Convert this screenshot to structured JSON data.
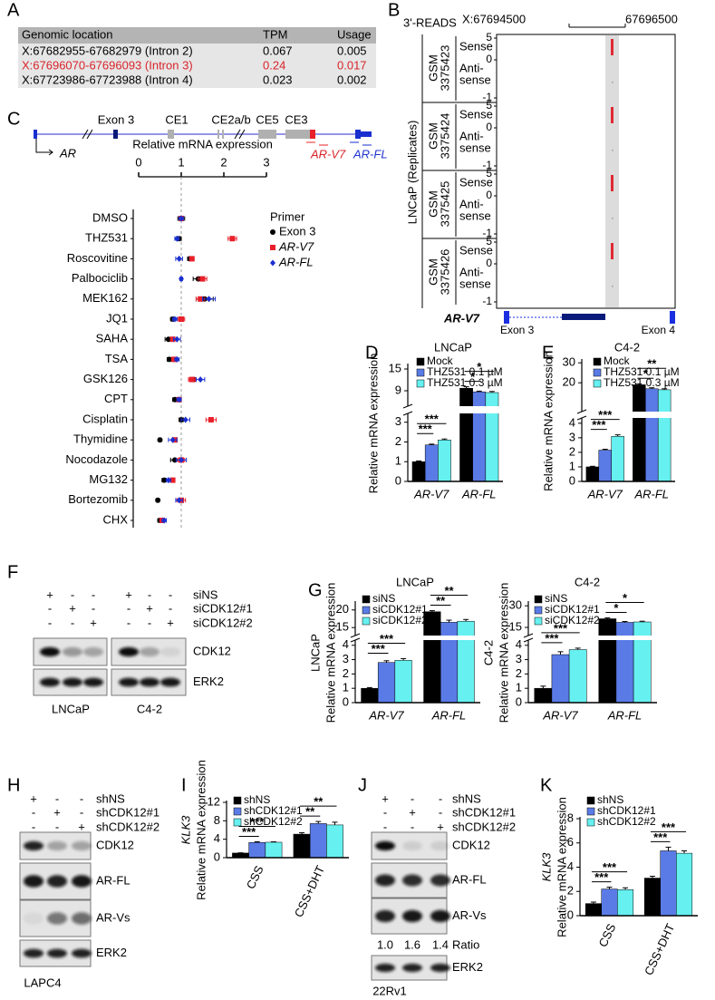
{
  "panel_labels": [
    "A",
    "B",
    "C",
    "D",
    "E",
    "F",
    "G",
    "H",
    "I",
    "J",
    "K"
  ],
  "table_a": {
    "header": [
      "Genomic location",
      "TPM",
      "Usage"
    ],
    "rows": [
      [
        "X:67682955-67682979 (Intron 2)",
        "0.067",
        "0.005"
      ],
      [
        "X:67696070-67696093 (Intron 3)",
        "0.24",
        "0.017"
      ],
      [
        "X:67723986-67723988 (Intron 4)",
        "0.023",
        "0.002"
      ]
    ],
    "highlight_row": 1
  },
  "tracks_b": {
    "title": "3'-READS",
    "start": "X:67694500",
    "end": "67696500",
    "group": "LNCaP (Replicates)",
    "samples": [
      [
        "GSM",
        "3375423"
      ],
      [
        "GSM",
        "3375424"
      ],
      [
        "GSM",
        "3375425"
      ],
      [
        "GSM",
        "3375426"
      ]
    ],
    "strands": [
      "Sense",
      [
        "Anti-",
        "sense"
      ]
    ],
    "ticks": [
      5,
      0,
      -1
    ],
    "gene": "AR-V7",
    "exons": [
      "Exon 3",
      "Exon 4"
    ]
  },
  "diagram_c": {
    "labels": [
      "Exon 3",
      "CE1",
      "CE2a/b",
      "CE5",
      "CE3"
    ],
    "gene": "AR",
    "isoforms": [
      "AR-V7",
      "AR-FL"
    ]
  },
  "chart_data": [
    {
      "type": "dot",
      "title": "Relative mRNA expression",
      "xlim": [
        0,
        3
      ],
      "xticks": [
        0,
        1,
        2,
        3
      ],
      "ref_line": 1,
      "categories": [
        "DMSO",
        "THZ531",
        "Roscovitine",
        "Palbociclib",
        "MEK162",
        "JQ1",
        "SAHA",
        "TSA",
        "GSK126",
        "CPT",
        "Cisplatin",
        "Thymidine",
        "Nocodazole",
        "MG132",
        "Bortezomib",
        "CHX"
      ],
      "legend_title": "Primer",
      "series": [
        {
          "name": "Exon 3",
          "color": "#000000",
          "marker": "circle",
          "values": [
            1.0,
            0.95,
            1.2,
            1.4,
            1.55,
            0.8,
            0.7,
            0.72,
            1.3,
            0.85,
            1.0,
            0.5,
            0.85,
            0.6,
            0.45,
            0.5
          ],
          "errors": [
            0.08,
            0.05,
            0.05,
            0.12,
            0.2,
            0.05,
            0.08,
            0.05,
            0.05,
            0.05,
            0.05,
            0.03,
            0.1,
            0.05,
            0.03,
            0.05
          ]
        },
        {
          "name": "AR-V7",
          "color": "#e8202a",
          "marker": "square",
          "values": [
            1.0,
            2.2,
            1.25,
            1.5,
            1.45,
            1.0,
            0.8,
            0.83,
            1.25,
            0.95,
            1.7,
            0.85,
            1.0,
            0.8,
            1.0,
            0.55
          ],
          "errors": [
            0.05,
            0.1,
            0.05,
            0.1,
            0.1,
            0.08,
            0.05,
            0.05,
            0.08,
            0.05,
            0.12,
            0.05,
            0.08,
            0.05,
            0.1,
            0.05
          ]
        },
        {
          "name": "AR-FL",
          "color": "#1a2fd0",
          "marker": "diamond",
          "values": [
            1.0,
            0.9,
            0.95,
            1.0,
            1.65,
            0.85,
            0.9,
            0.9,
            1.45,
            0.95,
            1.1,
            0.8,
            1.0,
            0.7,
            0.95,
            0.6
          ],
          "errors": [
            0.05,
            0.05,
            0.08,
            0.03,
            0.15,
            0.05,
            0.08,
            0.05,
            0.1,
            0.05,
            0.1,
            0.1,
            0.12,
            0.05,
            0.08,
            0.05
          ]
        }
      ]
    },
    {
      "type": "bar",
      "title": "LNCaP",
      "ylabel": [
        "Relative mRNA expression"
      ],
      "categories": [
        "AR-V7",
        "AR-FL"
      ],
      "ylim": [
        0,
        16
      ],
      "ybreak": [
        3.4,
        5
      ],
      "yticks": [
        0,
        1,
        2,
        3,
        9,
        15
      ],
      "series": [
        {
          "name": "Mock",
          "color": "#000000",
          "values": [
            1.0,
            9.7
          ],
          "errors": [
            0.04,
            0.4
          ]
        },
        {
          "name": "THZ531 0.1 µM",
          "color": "#5a7be6",
          "values": [
            1.85,
            8.7
          ],
          "errors": [
            0.04,
            0.2
          ]
        },
        {
          "name": "THZ531 0.3 µM",
          "color": "#66f0f0",
          "values": [
            2.1,
            8.5
          ],
          "errors": [
            0.05,
            0.3
          ]
        }
      ],
      "significance": [
        [
          "***",
          "***"
        ],
        [
          "*",
          "*"
        ]
      ]
    },
    {
      "type": "bar",
      "title": "C4-2",
      "ylabel": [
        "Relative mRNA expression"
      ],
      "categories": [
        "AR-V7",
        "AR-FL"
      ],
      "ylim": [
        0,
        31
      ],
      "ybreak": [
        4.3,
        6
      ],
      "yticks": [
        0,
        1,
        2,
        3,
        4,
        20,
        30
      ],
      "series": [
        {
          "name": "Mock",
          "color": "#000000",
          "values": [
            1.0,
            19
          ],
          "errors": [
            0.04,
            0.5
          ]
        },
        {
          "name": "THZ531 0.1 µM",
          "color": "#5a7be6",
          "values": [
            2.15,
            17
          ],
          "errors": [
            0.06,
            0.5
          ]
        },
        {
          "name": "THZ531 0.3 µM",
          "color": "#66f0f0",
          "values": [
            3.1,
            16.5
          ],
          "errors": [
            0.1,
            0.5
          ]
        }
      ],
      "significance": [
        [
          "***",
          "***"
        ],
        [
          "*",
          "**"
        ]
      ]
    },
    {
      "type": "bar",
      "title": "LNCaP",
      "ylabel": [
        "LNCaP",
        "Relative mRNA expression"
      ],
      "categories": [
        "AR-V7",
        "AR-FL"
      ],
      "ylim": [
        0,
        22
      ],
      "ybreak": [
        4.3,
        13
      ],
      "yticks": [
        0,
        1,
        2,
        3,
        4,
        15,
        20
      ],
      "series": [
        {
          "name": "siNS",
          "color": "#000000",
          "values": [
            1.0,
            19.5
          ],
          "errors": [
            0.05,
            0.3
          ]
        },
        {
          "name": "siCDK12#1",
          "color": "#5a7be6",
          "values": [
            2.8,
            16.5
          ],
          "errors": [
            0.12,
            0.6
          ]
        },
        {
          "name": "siCDK12#2",
          "color": "#66f0f0",
          "values": [
            2.95,
            16.8
          ],
          "errors": [
            0.12,
            0.5
          ]
        }
      ],
      "significance": [
        [
          "***",
          "***"
        ],
        [
          "**",
          "**"
        ]
      ]
    },
    {
      "type": "bar",
      "title": "C4-2",
      "ylabel": [
        "C4-2",
        "Relative mRNA expression"
      ],
      "categories": [
        "AR-V7",
        "AR-FL"
      ],
      "ylim": [
        0,
        32
      ],
      "ybreak": [
        4.3,
        10
      ],
      "yticks": [
        0,
        1,
        2,
        3,
        4,
        15,
        30
      ],
      "series": [
        {
          "name": "siNS",
          "color": "#000000",
          "values": [
            1.0,
            21
          ],
          "errors": [
            0.15,
            0.6
          ]
        },
        {
          "name": "siCDK12#1",
          "color": "#5a7be6",
          "values": [
            3.35,
            18.5
          ],
          "errors": [
            0.2,
            0.6
          ]
        },
        {
          "name": "siCDK12#2",
          "color": "#66f0f0",
          "values": [
            3.7,
            18.8
          ],
          "errors": [
            0.1,
            0.5
          ]
        }
      ],
      "significance": [
        [
          "***",
          "***"
        ],
        [
          "*",
          "*"
        ]
      ]
    },
    {
      "type": "bar",
      "ylabel": [
        "KLK3",
        "Relative mRNA expression"
      ],
      "categories": [
        "CSS",
        "CSS+DHT"
      ],
      "ylim": [
        0,
        12
      ],
      "yticks": [
        0,
        4,
        8,
        12
      ],
      "series": [
        {
          "name": "shNS",
          "color": "#000000",
          "values": [
            1.0,
            5.1
          ],
          "errors": [
            0.05,
            0.3
          ]
        },
        {
          "name": "shCDK12#1",
          "color": "#5a7be6",
          "values": [
            3.3,
            7.4
          ],
          "errors": [
            0.15,
            0.45
          ]
        },
        {
          "name": "shCDK12#2",
          "color": "#66f0f0",
          "values": [
            3.35,
            7.1
          ],
          "errors": [
            0.08,
            0.6
          ]
        }
      ],
      "significance": [
        [
          "***",
          "***"
        ],
        [
          "**",
          "**"
        ]
      ]
    },
    {
      "type": "bar",
      "ylabel": [
        "KLK3",
        "Relative mRNA expression"
      ],
      "categories": [
        "CSS",
        "CSS+DHT"
      ],
      "ylim": [
        0,
        8
      ],
      "yticks": [
        0,
        2,
        4,
        6,
        8
      ],
      "series": [
        {
          "name": "shNS",
          "color": "#000000",
          "values": [
            1.0,
            3.1
          ],
          "errors": [
            0.12,
            0.15
          ]
        },
        {
          "name": "shCDK12#1",
          "color": "#5a7be6",
          "values": [
            2.2,
            5.35
          ],
          "errors": [
            0.15,
            0.3
          ]
        },
        {
          "name": "shCDK12#2",
          "color": "#66f0f0",
          "values": [
            2.15,
            5.15
          ],
          "errors": [
            0.15,
            0.2
          ]
        }
      ],
      "significance": [
        [
          "***",
          "***"
        ],
        [
          "***",
          "***"
        ]
      ]
    }
  ],
  "blot_f": {
    "rows": [
      {
        "name": "siNS",
        "signs": [
          "+",
          "-",
          "-",
          "+",
          "-",
          "-"
        ]
      },
      {
        "name": "siCDK12#1",
        "signs": [
          "-",
          "+",
          "-",
          "-",
          "+",
          "-"
        ]
      },
      {
        "name": "siCDK12#2",
        "signs": [
          "-",
          "-",
          "+",
          "-",
          "-",
          "+"
        ]
      }
    ],
    "bands": [
      "CDK12",
      "ERK2"
    ],
    "cells": [
      "LNCaP",
      "C4-2"
    ]
  },
  "blot_h": {
    "rows": [
      {
        "name": "shNS",
        "signs": [
          "+",
          "-",
          "-"
        ]
      },
      {
        "name": "shCDK12#1",
        "signs": [
          "-",
          "+",
          "-"
        ]
      },
      {
        "name": "shCDK12#2",
        "signs": [
          "-",
          "-",
          "+"
        ]
      }
    ],
    "bands": [
      "CDK12",
      "AR-FL",
      "AR-Vs",
      "ERK2"
    ],
    "cells": [
      "LAPC4"
    ]
  },
  "blot_j": {
    "rows": [
      {
        "name": "shNS",
        "signs": [
          "+",
          "-",
          "-"
        ]
      },
      {
        "name": "shCDK12#1",
        "signs": [
          "-",
          "+",
          "-"
        ]
      },
      {
        "name": "shCDK12#2",
        "signs": [
          "-",
          "-",
          "+"
        ]
      }
    ],
    "bands": [
      "CDK12",
      "AR-FL",
      "AR-Vs",
      "ERK2"
    ],
    "ratio": {
      "label": "Ratio",
      "values": [
        "1.0",
        "1.6",
        "1.4"
      ]
    },
    "cells": [
      "22Rv1"
    ]
  }
}
